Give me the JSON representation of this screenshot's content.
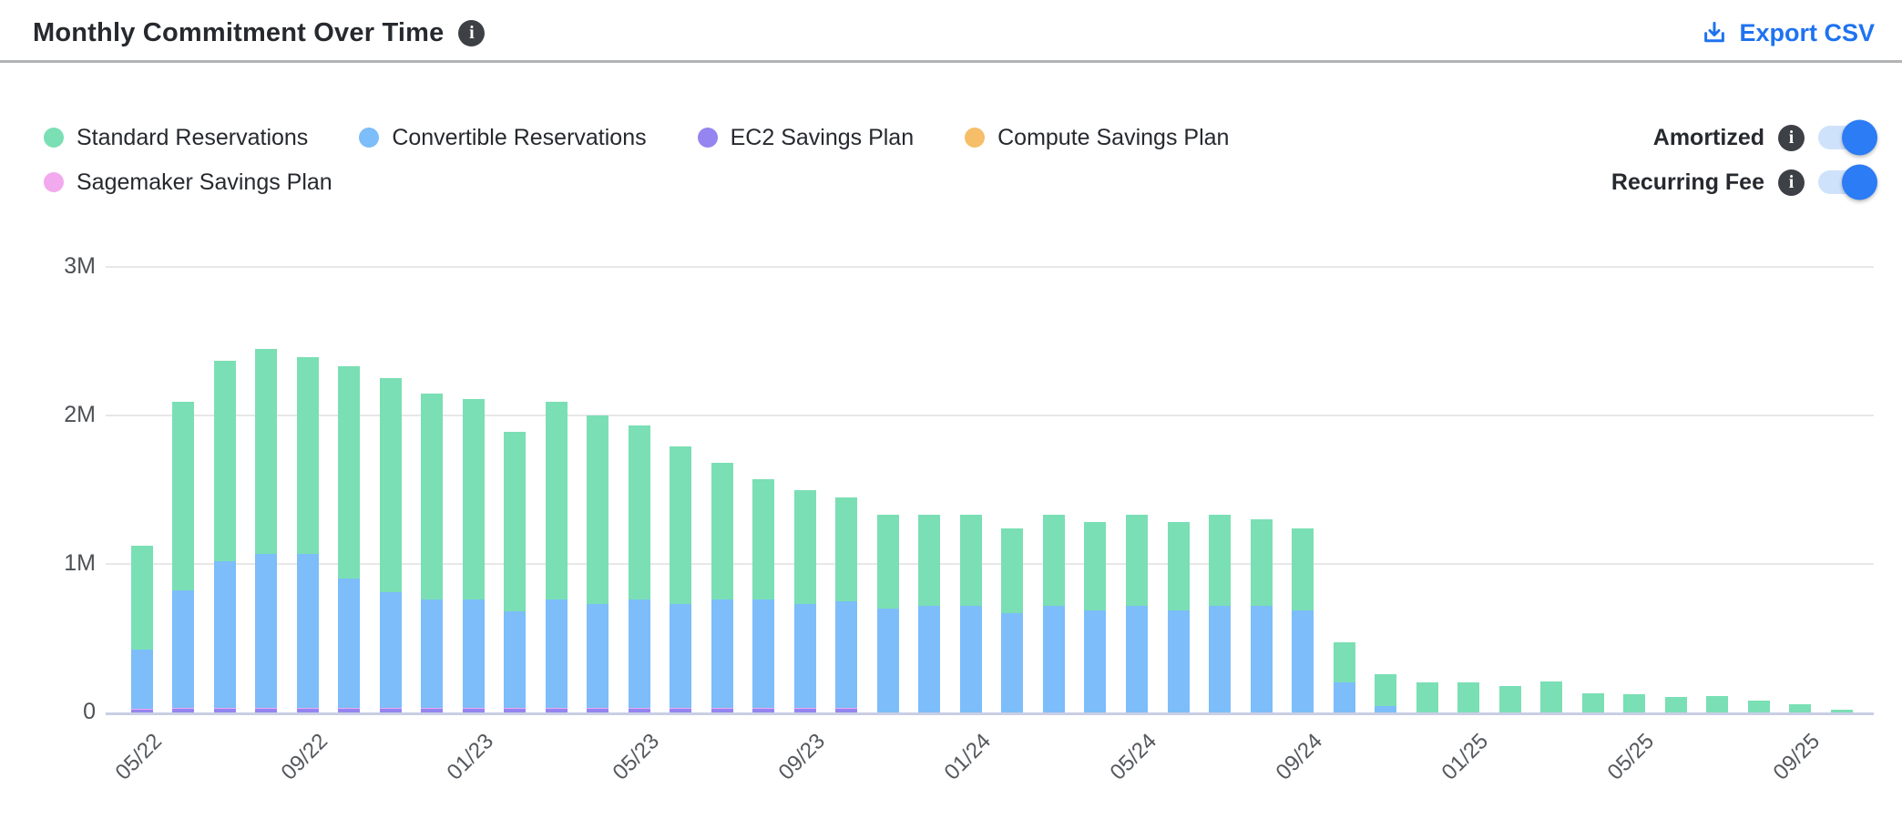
{
  "header": {
    "title": "Monthly Commitment Over Time",
    "export_label": "Export CSV"
  },
  "controls": {
    "toggles": [
      {
        "label": "Amortized",
        "state": "on"
      },
      {
        "label": "Recurring Fee",
        "state": "on"
      }
    ]
  },
  "colors": {
    "accent_blue": "#1e73f0",
    "toggle_track": "#cfe2fb",
    "toggle_knob": "#2b7cf5",
    "info_icon_bg": "#3d4045",
    "gridline": "#e7e7e7",
    "axis_line": "#c9cee4",
    "title_text": "#26292e",
    "tick_text": "#55595e"
  },
  "chart_data": {
    "type": "bar",
    "stacked": true,
    "title": "Monthly Commitment Over Time",
    "unit": "M",
    "ylim": [
      0,
      3
    ],
    "y_tick_labels": [
      "0",
      "1M",
      "2M",
      "3M"
    ],
    "x_tick_every": 4,
    "grid": "horizontal",
    "legend_position": "top-left",
    "categories": [
      "05/22",
      "06/22",
      "07/22",
      "08/22",
      "09/22",
      "10/22",
      "11/22",
      "12/22",
      "01/23",
      "02/23",
      "03/23",
      "04/23",
      "05/23",
      "06/23",
      "07/23",
      "08/23",
      "09/23",
      "10/23",
      "11/23",
      "12/23",
      "01/24",
      "02/24",
      "03/24",
      "04/24",
      "05/24",
      "06/24",
      "07/24",
      "08/24",
      "09/24",
      "10/24",
      "11/24",
      "12/24",
      "01/25",
      "02/25",
      "03/25",
      "04/25",
      "05/25",
      "06/25",
      "07/25",
      "08/25",
      "09/25",
      "10/25"
    ],
    "series": [
      {
        "name": "Standard Reservations",
        "color": "#7adfb4",
        "values": [
          0.7,
          1.27,
          1.35,
          1.38,
          1.32,
          1.43,
          1.44,
          1.39,
          1.35,
          1.21,
          1.33,
          1.27,
          1.17,
          1.06,
          0.92,
          0.81,
          0.77,
          0.7,
          0.63,
          0.61,
          0.61,
          0.57,
          0.61,
          0.59,
          0.61,
          0.59,
          0.61,
          0.58,
          0.55,
          0.27,
          0.22,
          0.2,
          0.2,
          0.18,
          0.21,
          0.13,
          0.12,
          0.105,
          0.11,
          0.08,
          0.055,
          0.02
        ]
      },
      {
        "name": "Convertible Reservations",
        "color": "#7cbdfa",
        "values": [
          0.4,
          0.79,
          0.99,
          1.04,
          1.04,
          0.87,
          0.78,
          0.73,
          0.73,
          0.65,
          0.73,
          0.7,
          0.73,
          0.7,
          0.73,
          0.73,
          0.7,
          0.72,
          0.7,
          0.72,
          0.72,
          0.67,
          0.72,
          0.69,
          0.72,
          0.69,
          0.72,
          0.72,
          0.69,
          0.2,
          0.04,
          0,
          0,
          0,
          0,
          0,
          0,
          0,
          0,
          0,
          0,
          0
        ]
      },
      {
        "name": "EC2 Savings Plan",
        "color": "#9485f0",
        "values": [
          0.02,
          0.025,
          0.025,
          0.025,
          0.025,
          0.025,
          0.025,
          0.025,
          0.025,
          0.025,
          0.025,
          0.025,
          0.025,
          0.025,
          0.025,
          0.025,
          0.025,
          0.025,
          0,
          0,
          0,
          0,
          0,
          0,
          0,
          0,
          0,
          0,
          0,
          0,
          0,
          0,
          0,
          0,
          0,
          0,
          0,
          0,
          0,
          0,
          0,
          0
        ]
      },
      {
        "name": "Compute Savings Plan",
        "color": "#f6be69",
        "values": [
          0,
          0,
          0,
          0,
          0,
          0,
          0,
          0,
          0,
          0,
          0,
          0,
          0,
          0,
          0,
          0,
          0,
          0,
          0,
          0,
          0,
          0,
          0,
          0,
          0,
          0,
          0,
          0,
          0,
          0,
          0,
          0,
          0,
          0,
          0,
          0,
          0,
          0,
          0,
          0,
          0,
          0
        ]
      },
      {
        "name": "Sagemaker Savings Plan",
        "color": "#f2a9ee",
        "values": [
          0.005,
          0.005,
          0.005,
          0.005,
          0.005,
          0.005,
          0.005,
          0.005,
          0.005,
          0.005,
          0.005,
          0.005,
          0.005,
          0.005,
          0.005,
          0.005,
          0.005,
          0.005,
          0,
          0,
          0,
          0,
          0,
          0,
          0,
          0,
          0,
          0,
          0,
          0,
          0,
          0,
          0,
          0,
          0,
          0,
          0,
          0,
          0,
          0,
          0,
          0
        ]
      }
    ],
    "stack_order_bottom_to_top": [
      "EC2 Savings Plan",
      "Sagemaker Savings Plan",
      "Convertible Reservations",
      "Standard Reservations",
      "Compute Savings Plan"
    ]
  }
}
